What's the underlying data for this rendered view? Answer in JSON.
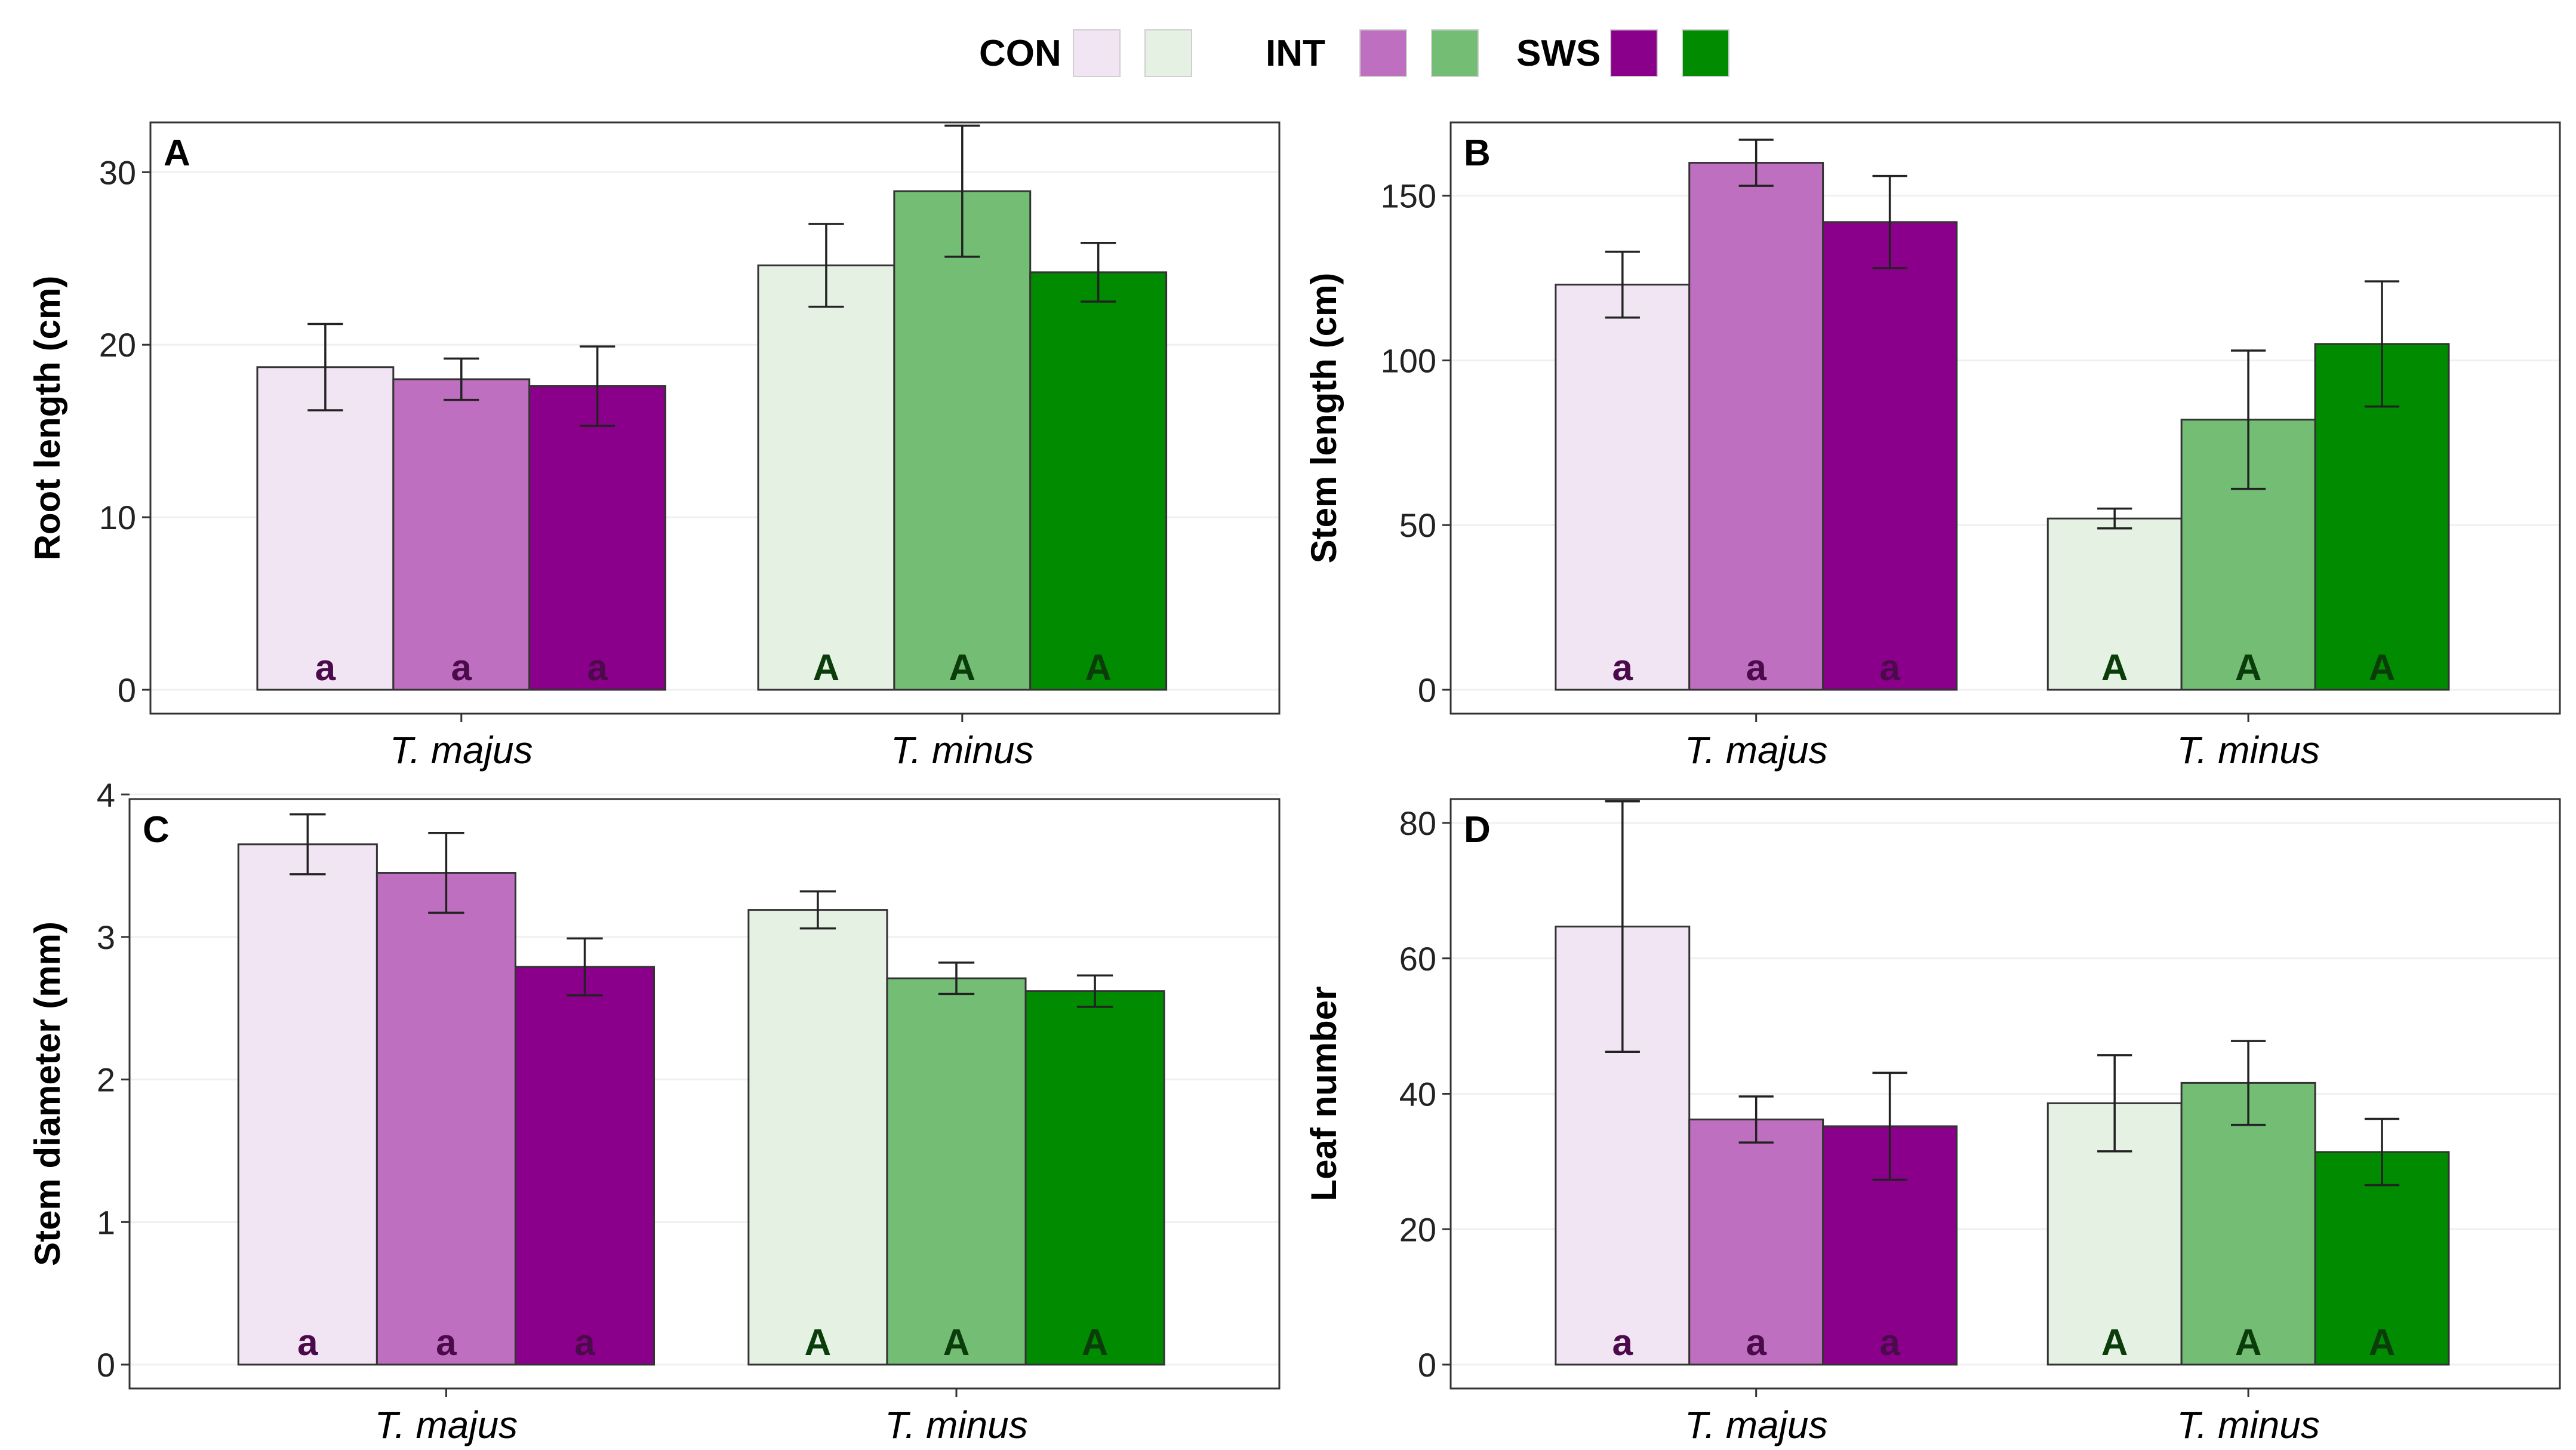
{
  "legend": [
    {
      "label": "CON",
      "colors": [
        "#f1e4f3",
        "#e5f2e3"
      ]
    },
    {
      "label": "INT",
      "colors": [
        "#bf6fbf",
        "#74bd74"
      ]
    },
    {
      "label": "SWS",
      "colors": [
        "#8b008b",
        "#008b00"
      ]
    }
  ],
  "colors": {
    "majus": [
      "#f1e4f3",
      "#bf6fbf",
      "#8b008b"
    ],
    "minus": [
      "#e5f2e3",
      "#74bd74",
      "#008b00"
    ],
    "majus_letter": "#4b0b4b",
    "minus_letter": "#0b3d0b"
  },
  "chart_data": [
    {
      "type": "bar",
      "panel": "A",
      "ylabel": "Root length (cm)",
      "ylim": [
        0,
        31.5
      ],
      "yticks": [
        0,
        10,
        20,
        30
      ],
      "categories": [
        "T. majus",
        "T. minus"
      ],
      "series": [
        {
          "name": "CON",
          "values": [
            18.7,
            24.6
          ],
          "errors": [
            2.5,
            2.4
          ],
          "letters": [
            "a",
            "A"
          ]
        },
        {
          "name": "INT",
          "values": [
            18.0,
            28.9
          ],
          "errors": [
            1.2,
            3.8
          ],
          "letters": [
            "a",
            "A"
          ]
        },
        {
          "name": "SWS",
          "values": [
            17.6,
            24.2
          ],
          "errors": [
            2.3,
            1.7
          ],
          "letters": [
            "a",
            "A"
          ]
        }
      ]
    },
    {
      "type": "bar",
      "panel": "B",
      "ylabel": "Stem length (cm)",
      "ylim": [
        0,
        165
      ],
      "yticks": [
        0,
        50,
        100,
        150
      ],
      "categories": [
        "T. majus",
        "T. minus"
      ],
      "series": [
        {
          "name": "CON",
          "values": [
            123,
            52
          ],
          "errors": [
            10,
            3
          ],
          "letters": [
            "a",
            "A"
          ]
        },
        {
          "name": "INT",
          "values": [
            160,
            82
          ],
          "errors": [
            7,
            21
          ],
          "letters": [
            "a",
            "A"
          ]
        },
        {
          "name": "SWS",
          "values": [
            142,
            105
          ],
          "errors": [
            14,
            19
          ],
          "letters": [
            "a",
            "A"
          ]
        }
      ]
    },
    {
      "type": "bar",
      "panel": "C",
      "ylabel": "Stem diameter (mm)",
      "ylim": [
        0,
        3.8
      ],
      "yticks": [
        0,
        1,
        2,
        3,
        4
      ],
      "categories": [
        "T. majus",
        "T. minus"
      ],
      "series": [
        {
          "name": "CON",
          "values": [
            3.65,
            3.19
          ],
          "errors": [
            0.21,
            0.13
          ],
          "letters": [
            "a",
            "A"
          ]
        },
        {
          "name": "INT",
          "values": [
            3.45,
            2.71
          ],
          "errors": [
            0.28,
            0.11
          ],
          "letters": [
            "a",
            "A"
          ]
        },
        {
          "name": "SWS",
          "values": [
            2.79,
            2.62
          ],
          "errors": [
            0.2,
            0.11
          ],
          "letters": [
            "a",
            "A"
          ]
        }
      ]
    },
    {
      "type": "bar",
      "panel": "D",
      "ylabel": "Leaf number",
      "ylim": [
        0,
        80
      ],
      "yticks": [
        0,
        20,
        40,
        60,
        80
      ],
      "categories": [
        "T. majus",
        "T. minus"
      ],
      "series": [
        {
          "name": "CON",
          "values": [
            64.7,
            38.6
          ],
          "errors": [
            18.5,
            7.1
          ],
          "letters": [
            "a",
            "A"
          ]
        },
        {
          "name": "INT",
          "values": [
            36.2,
            41.6
          ],
          "errors": [
            3.4,
            6.2
          ],
          "letters": [
            "a",
            "A"
          ]
        },
        {
          "name": "SWS",
          "values": [
            35.2,
            31.4
          ],
          "errors": [
            7.9,
            4.9
          ],
          "letters": [
            "a",
            "A"
          ]
        }
      ]
    }
  ]
}
